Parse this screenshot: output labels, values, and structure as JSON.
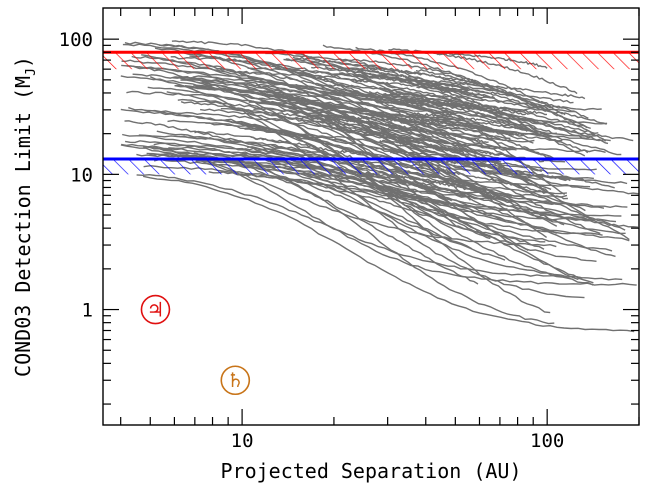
{
  "chart_data": {
    "type": "line",
    "xlabel": "Projected Separation (AU)",
    "ylabel": "COND03 Detection Limit (M",
    "ylabel_subscript": "J",
    "ylabel_close": ")",
    "xscale": "log",
    "yscale": "log",
    "xlim": [
      3.5,
      200
    ],
    "ylim": [
      0.14,
      170
    ],
    "x_tick_labels": [
      {
        "value": 10,
        "label": "10"
      },
      {
        "value": 100,
        "label": "100"
      }
    ],
    "y_tick_labels": [
      {
        "value": 1,
        "label": "1"
      },
      {
        "value": 10,
        "label": "10"
      },
      {
        "value": 100,
        "label": "100"
      }
    ],
    "hlines": [
      {
        "y": 80,
        "color": "#ff0000",
        "hatch_down_to": 60
      },
      {
        "y": 13,
        "color": "#0000ff",
        "hatch_down_to": 10
      }
    ],
    "curve_color": "#707070",
    "curve_count": 150,
    "curve_family": {
      "description_values": "detection-limit curves; each falls from a high mass at small separation toward a floor between ~0.6 and ~30 M_J",
      "x_start_range": [
        4,
        40
      ],
      "x_end_range": [
        30,
        200
      ],
      "y_floor_range": [
        0.6,
        30
      ],
      "y_start_range": [
        10,
        110
      ]
    },
    "markers": [
      {
        "name": "jupiter",
        "symbol": "♃",
        "x": 5.2,
        "y": 1.0,
        "color": "#e01010"
      },
      {
        "name": "saturn",
        "symbol": "♄",
        "x": 9.5,
        "y": 0.3,
        "color": "#c87418"
      }
    ]
  }
}
